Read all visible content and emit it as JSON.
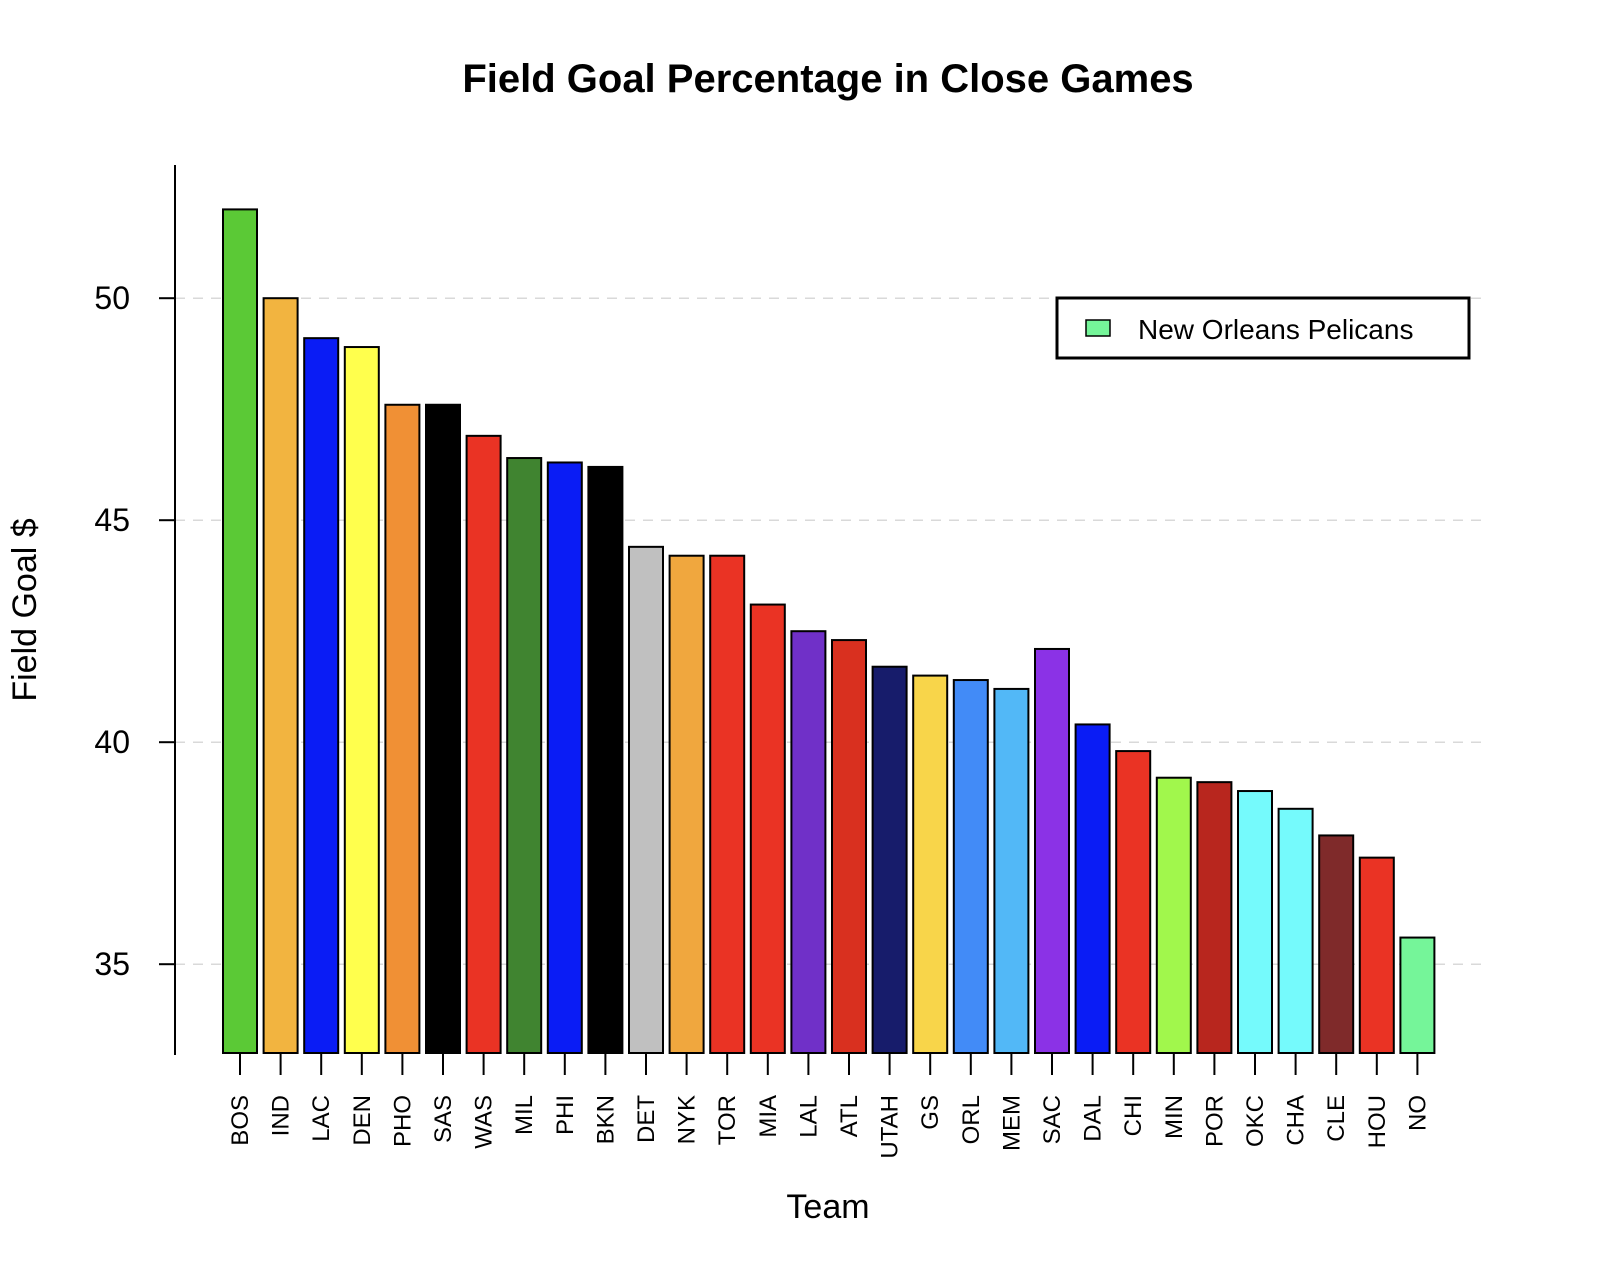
{
  "chart_data": {
    "type": "bar",
    "title": "Field Goal Percentage in Close Games",
    "xlabel": "Team",
    "ylabel": "Field Goal $",
    "ylim": [
      33,
      53
    ],
    "yticks": [
      35,
      40,
      45,
      50
    ],
    "grid": "horizontal-dashed",
    "legend_position": "top-right",
    "categories": [
      "BOS",
      "IND",
      "LAC",
      "DEN",
      "PHO",
      "SAS",
      "WAS",
      "MIL",
      "PHI",
      "BKN",
      "DET",
      "NYK",
      "TOR",
      "MIA",
      "LAL",
      "ATL",
      "UTAH",
      "GS",
      "ORL",
      "MEM",
      "SAC",
      "DAL",
      "CHI",
      "MIN",
      "POR",
      "OKC",
      "CHA",
      "CLE",
      "HOU",
      "NO"
    ],
    "values": [
      52.0,
      50.0,
      49.1,
      48.9,
      47.6,
      47.6,
      46.9,
      46.4,
      46.3,
      46.2,
      44.4,
      44.2,
      44.2,
      43.1,
      42.5,
      42.3,
      41.7,
      41.5,
      41.4,
      41.2,
      42.1,
      40.4,
      39.8,
      39.2,
      39.1,
      38.9,
      38.5,
      37.9,
      37.4,
      35.6
    ],
    "colors": [
      "#5BC936",
      "#F2B440",
      "#0A1CF5",
      "#FFFF4D",
      "#F09035",
      "#000000",
      "#EA3324",
      "#408430",
      "#0A1CF5",
      "#000000",
      "#C0C0C0",
      "#F0A73E",
      "#EA3324",
      "#EA3324",
      "#7030C8",
      "#D9301F",
      "#171C6B",
      "#F8D54A",
      "#428BF7",
      "#52B8F7",
      "#8B32E6",
      "#0A1CF5",
      "#EA3324",
      "#A1F74C",
      "#B8261E",
      "#75FAFC",
      "#75FAFC",
      "#7F2A2A",
      "#EA3324",
      "#75F599"
    ],
    "legend": [
      {
        "label": "New Orleans Pelicans",
        "color": "#75F599"
      }
    ]
  }
}
